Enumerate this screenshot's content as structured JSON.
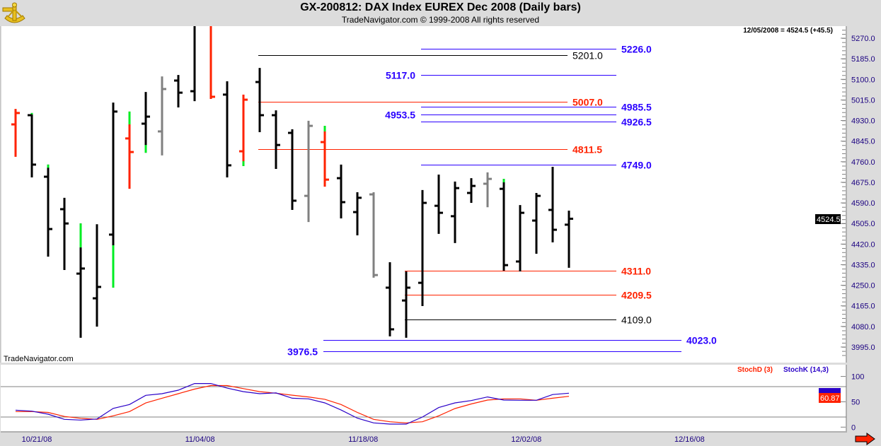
{
  "header": {
    "title": "GX-200812:  DAX Index EUREX Dec 2008  (Daily bars)",
    "subtitle": "TradeNavigator.com © 1999-2008 All rights reserved",
    "logo": "sextant-logo"
  },
  "price_readout": "12/05/2008 = 4524.5 (+45.5)",
  "watermark": "TradeNavigator.com",
  "last_price_label": "4524.5",
  "indicator": {
    "legend": [
      {
        "label": "StochD (3)",
        "color": "#ff2200"
      },
      {
        "label": "StochK (14,3)",
        "color": "#2a00c8"
      }
    ],
    "last_value_label": "60.87",
    "axis_ticks": [
      "100",
      "50",
      "0"
    ]
  },
  "nav_arrow": "right-arrow-icon",
  "colors": {
    "up_bar": "#000000",
    "down_bar": "#ff2200",
    "neutral_bar": "#808080",
    "highlight": "#00ee22",
    "blue_level": "#2a00ff",
    "red_level": "#ff2200",
    "black_level": "#000000",
    "axis_text": "#1a0080"
  },
  "chart_data": [
    {
      "type": "ohlc",
      "title": "GX-200812:  DAX Index EUREX Dec 2008  (Daily bars)",
      "ylim": [
        3940,
        5320
      ],
      "y_ticks": [
        "5270.0",
        "5185.0",
        "5100.0",
        "5015.0",
        "4930.0",
        "4845.0",
        "4760.0",
        "4675.0",
        "4590.0",
        "4505.0",
        "4420.0",
        "4335.0",
        "4250.0",
        "4165.0",
        "4080.0",
        "3995.0"
      ],
      "x_ticks": [
        "10/21/08",
        "11/04/08",
        "11/18/08",
        "12/02/08",
        "12/16/08"
      ],
      "bars": [
        {
          "o": 4914,
          "h": 4978,
          "l": 4780,
          "c": 4961,
          "color": "red"
        },
        {
          "o": 4952,
          "h": 4961,
          "l": 4695,
          "c": 4748,
          "color": "black",
          "hl": [
            4961,
            4955
          ]
        },
        {
          "o": 4698,
          "h": 4748,
          "l": 4368,
          "c": 4482,
          "color": "black",
          "hl": [
            4748,
            4735
          ]
        },
        {
          "o": 4564,
          "h": 4611,
          "l": 4313,
          "c": 4505,
          "color": "black"
        },
        {
          "o": 4298,
          "h": 4505,
          "l": 4033,
          "c": 4319,
          "color": "black",
          "hl": [
            4505,
            4406
          ]
        },
        {
          "o": 4196,
          "h": 4502,
          "l": 4079,
          "c": 4243,
          "color": "black"
        },
        {
          "o": 4459,
          "h": 5004,
          "l": 4240,
          "c": 4967,
          "color": "black",
          "hl": [
            4415,
            4240
          ]
        },
        {
          "o": 4856,
          "h": 4967,
          "l": 4648,
          "c": 4800,
          "color": "red",
          "hl": [
            4967,
            4914
          ]
        },
        {
          "o": 4917,
          "h": 5048,
          "l": 4797,
          "c": 4946,
          "color": "black",
          "hl": [
            4829,
            4797
          ]
        },
        {
          "o": 4885,
          "h": 5112,
          "l": 4786,
          "c": 5060,
          "color": "gray"
        },
        {
          "o": 5095,
          "h": 5118,
          "l": 4984,
          "c": 5045,
          "color": "black"
        },
        {
          "o": 5051,
          "h": 5330,
          "l": 5010,
          "c": null,
          "color": "black"
        },
        {
          "o": null,
          "h": 5330,
          "l": 5019,
          "c": 5028,
          "color": "red"
        },
        {
          "o": 5037,
          "h": 5092,
          "l": 4695,
          "c": 4745,
          "color": "black"
        },
        {
          "o": 4803,
          "h": 5037,
          "l": 4742,
          "c": 5016,
          "color": "red",
          "hl": [
            4762,
            4742
          ]
        },
        {
          "o": 5089,
          "h": 5147,
          "l": 4882,
          "c": 4952,
          "color": "black"
        },
        {
          "o": 4952,
          "h": 4972,
          "l": 4730,
          "c": 4829,
          "color": "black"
        },
        {
          "o": 4879,
          "h": 4894,
          "l": 4561,
          "c": 4599,
          "color": "black"
        },
        {
          "o": 4619,
          "h": 4929,
          "l": 4511,
          "c": 4908,
          "color": "gray"
        },
        {
          "o": 4841,
          "h": 4908,
          "l": 4657,
          "c": 4686,
          "color": "red",
          "hl": [
            4908,
            4885
          ]
        },
        {
          "o": 4692,
          "h": 4748,
          "l": 4526,
          "c": 4593,
          "color": "black"
        },
        {
          "o": 4552,
          "h": 4634,
          "l": 4456,
          "c": 4611,
          "color": "black"
        },
        {
          "o": 4625,
          "h": 4634,
          "l": 4281,
          "c": 4292,
          "color": "gray"
        },
        {
          "o": 4240,
          "h": 4345,
          "l": 4039,
          "c": 4068,
          "color": "black"
        },
        {
          "o": 4187,
          "h": 4307,
          "l": 4033,
          "c": 4240,
          "color": "black"
        },
        {
          "o": 4260,
          "h": 4643,
          "l": 4164,
          "c": 4590,
          "color": "black"
        },
        {
          "o": 4578,
          "h": 4707,
          "l": 4462,
          "c": 4549,
          "color": "black"
        },
        {
          "o": 4535,
          "h": 4678,
          "l": 4424,
          "c": 4651,
          "color": "black"
        },
        {
          "o": 4631,
          "h": 4692,
          "l": 4590,
          "c": 4660,
          "color": "black"
        },
        {
          "o": 4669,
          "h": 4716,
          "l": 4572,
          "c": 4689,
          "color": "gray"
        },
        {
          "o": 4648,
          "h": 4689,
          "l": 4310,
          "c": 4333,
          "color": "black",
          "hl": [
            4689,
            4675
          ]
        },
        {
          "o": 4348,
          "h": 4581,
          "l": 4307,
          "c": 4549,
          "color": "black"
        },
        {
          "o": 4517,
          "h": 4631,
          "l": 4380,
          "c": 4619,
          "color": "black"
        },
        {
          "o": 4561,
          "h": 4739,
          "l": 4427,
          "c": 4479,
          "color": "black"
        },
        {
          "o": 4500,
          "h": 4558,
          "l": 4322,
          "c": 4524.5,
          "color": "black"
        }
      ],
      "levels": [
        {
          "value": 5226.0,
          "label": "5226.0",
          "color": "blue",
          "from": 25,
          "to": 35,
          "label_side": "right"
        },
        {
          "value": 5201.0,
          "label": "5201.0",
          "color": "black",
          "from": 15,
          "to": 32,
          "label_side": "right"
        },
        {
          "value": 5117.0,
          "label": "5117.0",
          "color": "blue",
          "from": 25,
          "to": 35,
          "label_side": "left"
        },
        {
          "value": 5007.0,
          "label": "5007.0",
          "color": "red",
          "from": 15,
          "to": 32,
          "label_side": "right"
        },
        {
          "value": 4985.5,
          "label": "4985.5",
          "color": "blue",
          "from": 25,
          "to": 35,
          "label_side": "right"
        },
        {
          "value": 4953.5,
          "label": "4953.5",
          "color": "blue",
          "from": 25,
          "to": 35,
          "label_side": "left"
        },
        {
          "value": 4926.5,
          "label": "4926.5",
          "color": "blue",
          "from": 25,
          "to": 35,
          "label_side": "right"
        },
        {
          "value": 4811.5,
          "label": "4811.5",
          "color": "red",
          "from": 15,
          "to": 32,
          "label_side": "right"
        },
        {
          "value": 4749.0,
          "label": "4749.0",
          "color": "blue",
          "from": 25,
          "to": 35,
          "label_side": "right"
        },
        {
          "value": 4311.0,
          "label": "4311.0",
          "color": "red",
          "from": 24,
          "to": 35,
          "label_side": "right"
        },
        {
          "value": 4209.5,
          "label": "4209.5",
          "color": "red",
          "from": 24,
          "to": 35,
          "label_side": "right"
        },
        {
          "value": 4109.0,
          "label": "4109.0",
          "color": "black",
          "from": 24,
          "to": 35,
          "label_side": "right"
        },
        {
          "value": 4023.0,
          "label": "4023.0",
          "color": "blue",
          "from": 19,
          "to": 39,
          "label_side": "right"
        },
        {
          "value": 3976.5,
          "label": "3976.5",
          "color": "blue",
          "from": 19,
          "to": 39,
          "label_side": "left"
        }
      ]
    },
    {
      "type": "line",
      "ylim": [
        0,
        100
      ],
      "reference_lines": [
        80,
        20
      ],
      "series": [
        {
          "name": "StochD (3)",
          "color": "#ff2200",
          "values": [
            30.7,
            30.7,
            29,
            21,
            17.5,
            15.3,
            22.3,
            30.7,
            47.7,
            57,
            66,
            75,
            82,
            82,
            76,
            70,
            67,
            63,
            59.5,
            55,
            44.6,
            29,
            15.3,
            10.6,
            8.4,
            10.6,
            22.3,
            36.7,
            45.7,
            53.4,
            55.8,
            55.8,
            53,
            57,
            60.87
          ]
        },
        {
          "name": "StochK (14,3)",
          "color": "#2a00c8",
          "values": [
            33.5,
            31.5,
            25.5,
            15.3,
            14,
            16,
            37,
            44.6,
            62.8,
            66,
            73,
            86,
            86,
            77,
            70,
            66,
            67.5,
            57,
            55.8,
            47.8,
            33.8,
            17.7,
            8.4,
            6,
            6,
            20,
            38.6,
            47.8,
            52.4,
            59.5,
            53.4,
            53,
            53,
            64.3,
            67
          ]
        }
      ]
    }
  ]
}
